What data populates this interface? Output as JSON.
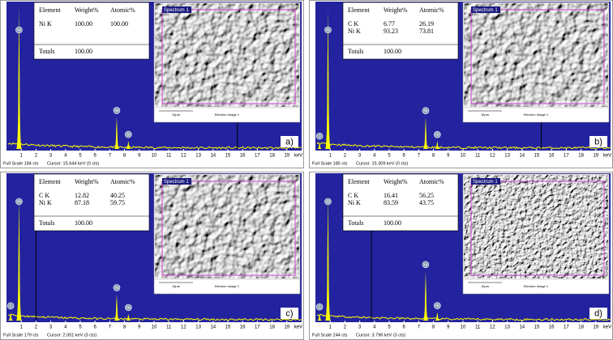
{
  "chart_data": [
    {
      "type": "spectrum",
      "panel_label": "a)",
      "xlabel": "keV",
      "xlim": [
        0,
        20
      ],
      "xticks": [
        1,
        2,
        3,
        4,
        5,
        6,
        7,
        8,
        9,
        10,
        11,
        12,
        13,
        14,
        15,
        16,
        17,
        18,
        19
      ],
      "ylim": [
        0,
        184
      ],
      "full_scale": "Full Scale 184 cts",
      "cursor": "Cursor: 15.644 keV (0 cts)",
      "cursor_kev": 15.644,
      "color": "#ffff00",
      "x": [
        0.85,
        7.47,
        8.26
      ],
      "values": [
        178,
        40,
        10
      ],
      "peak_labels": [
        "Ni",
        "Ni",
        "Ni"
      ],
      "table": {
        "header": [
          "Element",
          "Weight%",
          "Atomic%"
        ],
        "rows": [
          [
            "Ni K",
            "100.00",
            "100.00"
          ]
        ],
        "totals": [
          "Totals",
          "100.00"
        ]
      },
      "image": {
        "label": "Spectrum 1",
        "scale": "10μm",
        "caption": "Electron Image 1"
      }
    },
    {
      "type": "spectrum",
      "panel_label": "b)",
      "xlabel": "keV",
      "xlim": [
        0,
        20
      ],
      "xticks": [
        1,
        2,
        3,
        4,
        5,
        6,
        7,
        8,
        9,
        10,
        11,
        12,
        13,
        14,
        15,
        16,
        17,
        18,
        19
      ],
      "ylim": [
        0,
        185
      ],
      "full_scale": "Full Scale 185 cts",
      "cursor": "Cursor: 15.309 keV (0 cts)",
      "cursor_kev": 15.309,
      "color": "#ffff00",
      "x": [
        0.28,
        0.85,
        7.47,
        8.26
      ],
      "values": [
        8,
        175,
        40,
        10
      ],
      "peak_labels": [
        "C",
        "Ni",
        "Ni",
        "Ni"
      ],
      "table": {
        "header": [
          "Element",
          "Weight%",
          "Atomic%"
        ],
        "rows": [
          [
            "C K",
            "6.77",
            "26.19"
          ],
          [
            "Ni K",
            "93.23",
            "73.81"
          ]
        ],
        "totals": [
          "Totals",
          "100.00"
        ]
      },
      "image": {
        "label": "Spectrum 1",
        "scale": "10μm",
        "caption": "Electron Image 1"
      }
    },
    {
      "type": "spectrum",
      "panel_label": "c)",
      "xlabel": "keV",
      "xlim": [
        0,
        20
      ],
      "xticks": [
        1,
        2,
        3,
        4,
        5,
        6,
        7,
        8,
        9,
        10,
        11,
        12,
        13,
        14,
        15,
        16,
        17,
        18,
        19
      ],
      "ylim": [
        0,
        179
      ],
      "full_scale": "Full Scale 179 cts",
      "cursor": "Cursor: 2.001 keV (3 cts)",
      "cursor_kev": 2.001,
      "color": "#ffff00",
      "x": [
        0.28,
        0.85,
        7.47,
        8.26
      ],
      "values": [
        10,
        151,
        32,
        8
      ],
      "peak_labels": [
        "C",
        "Ni",
        "Ni",
        "Ni"
      ],
      "table": {
        "header": [
          "Element",
          "Weight%",
          "Atomic%"
        ],
        "rows": [
          [
            "C K",
            "12.82",
            "40.25"
          ],
          [
            "Ni K",
            "87.18",
            "59.75"
          ]
        ],
        "totals": [
          "Totals",
          "100.00"
        ]
      },
      "image": {
        "label": "Spectrum 1",
        "scale": "10μm",
        "caption": "Electron Image 1"
      }
    },
    {
      "type": "spectrum",
      "panel_label": "d)",
      "xlabel": "keV",
      "xlim": [
        0,
        20
      ],
      "xticks": [
        1,
        2,
        3,
        4,
        5,
        6,
        7,
        8,
        9,
        10,
        11,
        12,
        13,
        14,
        15,
        16,
        17,
        18,
        19
      ],
      "ylim": [
        0,
        244
      ],
      "full_scale": "Full Scale 244 cts",
      "cursor": "Cursor: 3.796 keV (3 cts)",
      "cursor_kev": 3.796,
      "color": "#ffff00",
      "x": [
        0.28,
        0.85,
        7.47,
        8.26
      ],
      "values": [
        12,
        206,
        82,
        14
      ],
      "peak_labels": [
        "C",
        "Ni",
        "Ni",
        "Ni"
      ],
      "table": {
        "header": [
          "Element",
          "Weight%",
          "Atomic%"
        ],
        "rows": [
          [
            "C K",
            "16.41",
            "56.25"
          ],
          [
            "Ni K",
            "83.59",
            "43.75"
          ]
        ],
        "totals": [
          "Totals",
          "100.00"
        ]
      },
      "image": {
        "label": "Spectrum 1",
        "scale": "10μm",
        "caption": "Electron Image 1"
      }
    }
  ]
}
